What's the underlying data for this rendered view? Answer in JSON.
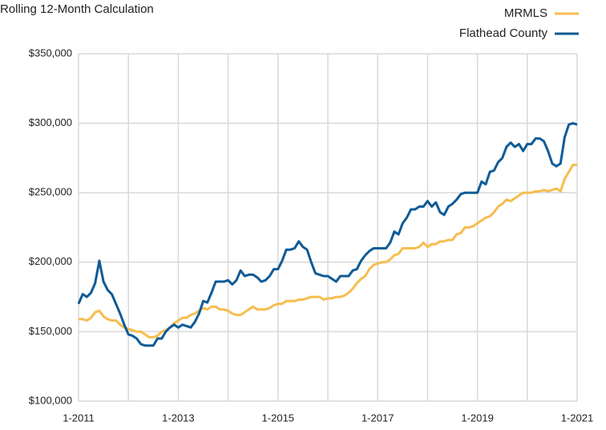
{
  "chart_data": {
    "type": "line",
    "title": "Rolling 12-Month Calculation",
    "categories": [
      "1-2011",
      null,
      null,
      null,
      null,
      null,
      null,
      null,
      null,
      null,
      null,
      null,
      null,
      null,
      null,
      null,
      null,
      null,
      null,
      null,
      null,
      null,
      null,
      null,
      "1-2013",
      null,
      null,
      null,
      null,
      null,
      null,
      null,
      null,
      null,
      null,
      null,
      null,
      null,
      null,
      null,
      null,
      null,
      null,
      null,
      null,
      null,
      null,
      null,
      "1-2015",
      null,
      null,
      null,
      null,
      null,
      null,
      null,
      null,
      null,
      null,
      null,
      null,
      null,
      null,
      null,
      null,
      null,
      null,
      null,
      null,
      null,
      null,
      null,
      "1-2017",
      null,
      null,
      null,
      null,
      null,
      null,
      null,
      null,
      null,
      null,
      null,
      null,
      null,
      null,
      null,
      null,
      null,
      null,
      null,
      null,
      null,
      null,
      null,
      "1-2019",
      null,
      null,
      null,
      null,
      null,
      null,
      null,
      null,
      null,
      null,
      null,
      null,
      null,
      null,
      null,
      null,
      null,
      null,
      null,
      null,
      null,
      null,
      null,
      "1-2021"
    ],
    "series": [
      {
        "name": "MRMLS",
        "color": "#f6bd4f",
        "values": [
          159000,
          159000,
          158000,
          160000,
          164000,
          165000,
          161000,
          159000,
          158000,
          158000,
          155000,
          153000,
          152000,
          151000,
          150000,
          150000,
          148000,
          146000,
          146000,
          147000,
          150000,
          151000,
          153000,
          156000,
          158000,
          160000,
          160000,
          162000,
          163000,
          165000,
          167000,
          166000,
          168000,
          168000,
          166000,
          166000,
          165000,
          163000,
          162000,
          162000,
          164000,
          166000,
          168000,
          166000,
          166000,
          166000,
          167000,
          169000,
          170000,
          170000,
          172000,
          172000,
          172000,
          173000,
          173000,
          174000,
          175000,
          175000,
          175000,
          173000,
          174000,
          174000,
          175000,
          175000,
          176000,
          178000,
          181000,
          185000,
          188000,
          190000,
          195000,
          198000,
          199000,
          200000,
          200000,
          202000,
          205000,
          206000,
          210000,
          210000,
          210000,
          210000,
          211000,
          214000,
          211000,
          213000,
          213000,
          215000,
          215000,
          216000,
          216000,
          220000,
          221000,
          225000,
          225000,
          226000,
          228000,
          230000,
          232000,
          233000,
          236000,
          240000,
          242000,
          245000,
          244000,
          246000,
          248000,
          250000,
          250000,
          250000,
          251000,
          251000,
          252000,
          251000,
          252000,
          253000,
          251000,
          260000,
          265000,
          270000,
          270000
        ]
      },
      {
        "name": "Flathead County",
        "color": "#0f5b96",
        "values": [
          170000,
          177000,
          175000,
          178000,
          185000,
          201000,
          186000,
          180000,
          177000,
          170000,
          163000,
          155000,
          148000,
          147000,
          145000,
          141000,
          140000,
          140000,
          140000,
          145000,
          145000,
          150000,
          153000,
          155000,
          153000,
          155000,
          154000,
          153000,
          157000,
          163000,
          172000,
          171000,
          178000,
          186000,
          186000,
          186000,
          187000,
          184000,
          187000,
          194000,
          190000,
          191000,
          191000,
          189000,
          186000,
          187000,
          190000,
          195000,
          195000,
          201000,
          209000,
          209000,
          210000,
          215000,
          211000,
          209000,
          200000,
          192000,
          191000,
          190000,
          190000,
          188000,
          186000,
          190000,
          190000,
          190000,
          194000,
          195000,
          201000,
          205000,
          208000,
          210000,
          210000,
          210000,
          210000,
          214000,
          222000,
          220000,
          228000,
          232000,
          238000,
          238000,
          240000,
          240000,
          244000,
          240000,
          243000,
          236000,
          234000,
          240000,
          242000,
          245000,
          249000,
          250000,
          250000,
          250000,
          250000,
          258000,
          256000,
          265000,
          266000,
          272000,
          275000,
          283000,
          286000,
          283000,
          285000,
          280000,
          285000,
          285000,
          289000,
          289000,
          287000,
          280000,
          271000,
          269000,
          271000,
          290000,
          299000,
          300000,
          299000
        ]
      }
    ],
    "ylim": [
      100000,
      350000
    ],
    "yticks": [
      {
        "value": 100000,
        "label": "$100,000"
      },
      {
        "value": 150000,
        "label": "$150,000"
      },
      {
        "value": 200000,
        "label": "$200,000"
      },
      {
        "value": 250000,
        "label": "$250,000"
      },
      {
        "value": 300000,
        "label": "$300,000"
      },
      {
        "value": 350000,
        "label": "$350,000"
      }
    ],
    "grid": true,
    "legend": "top-right"
  }
}
